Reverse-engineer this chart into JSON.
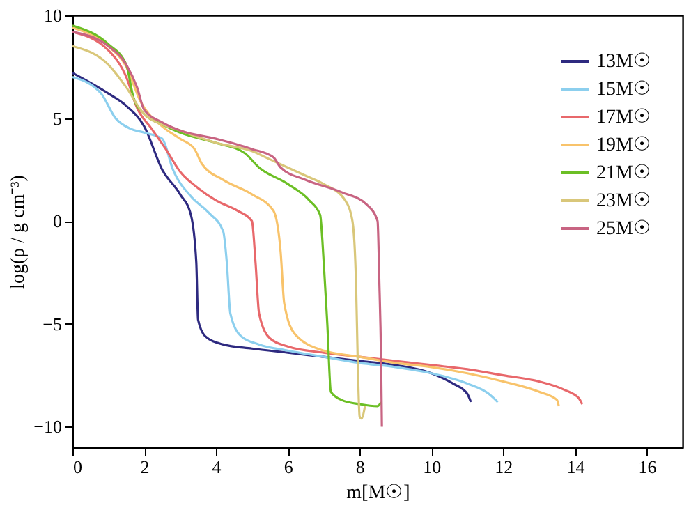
{
  "chart_data": {
    "type": "line",
    "xlabel": "m[M☉]",
    "ylabel": "log(ρ / g cm⁻³)",
    "xlim": [
      0,
      17
    ],
    "ylim": [
      -11,
      10
    ],
    "xticks": [
      0,
      2,
      4,
      6,
      8,
      10,
      12,
      14,
      16
    ],
    "yticks": [
      -10,
      -5,
      0,
      5,
      10
    ],
    "grid": false,
    "legend": "top right",
    "line_style": "solid",
    "marker": "none",
    "series": [
      {
        "name": "13M☉",
        "color": "#2e2a80",
        "x": [
          0,
          1,
          1.5,
          2,
          2.5,
          3,
          3.3,
          3.45,
          3.5,
          3.7,
          4.2,
          5,
          6,
          7,
          8,
          9,
          10,
          10.6,
          11,
          11.1
        ],
        "values": [
          7.2,
          6.2,
          5.6,
          4.6,
          2.5,
          1.3,
          0.3,
          -2,
          -4.8,
          -5.6,
          -6.0,
          -6.2,
          -6.4,
          -6.6,
          -6.8,
          -7.0,
          -7.4,
          -7.9,
          -8.4,
          -8.8
        ]
      },
      {
        "name": "15M☉",
        "color": "#8ccfee",
        "x": [
          0,
          0.8,
          1.2,
          1.6,
          2,
          2.5,
          2.8,
          3.3,
          3.8,
          4.2,
          4.3,
          4.4,
          4.7,
          5.2,
          6,
          7,
          8,
          9,
          10,
          11,
          11.6,
          11.85
        ],
        "values": [
          7.0,
          6.2,
          5.0,
          4.5,
          4.3,
          4.0,
          2.5,
          1.2,
          0.4,
          -0.5,
          -2,
          -4.5,
          -5.6,
          -6.0,
          -6.3,
          -6.6,
          -6.9,
          -7.1,
          -7.4,
          -7.9,
          -8.4,
          -8.8
        ]
      },
      {
        "name": "17M☉",
        "color": "#e8686b",
        "x": [
          0,
          1,
          1.5,
          1.8,
          2.2,
          2.6,
          3,
          3.5,
          4,
          4.6,
          5,
          5.1,
          5.2,
          5.5,
          6,
          7,
          8,
          9,
          10,
          11,
          12,
          13,
          13.7,
          14.1,
          14.2
        ],
        "values": [
          9.2,
          8.3,
          7.0,
          5.5,
          4.5,
          3.5,
          2.4,
          1.6,
          1.0,
          0.5,
          0,
          -2,
          -4.5,
          -5.7,
          -6.1,
          -6.4,
          -6.6,
          -6.8,
          -7.0,
          -7.2,
          -7.5,
          -7.8,
          -8.2,
          -8.6,
          -8.9
        ]
      },
      {
        "name": "19M☉",
        "color": "#f8c36b",
        "x": [
          0,
          1,
          1.5,
          1.9,
          2.5,
          3,
          3.4,
          3.6,
          4.2,
          5,
          5.6,
          5.8,
          5.9,
          6.2,
          7,
          8,
          9,
          10,
          11,
          12,
          13,
          13.5,
          13.55
        ],
        "values": [
          9.4,
          8.5,
          7.5,
          5.8,
          4.6,
          4.0,
          3.5,
          2.8,
          2.0,
          1.3,
          0.5,
          -1.5,
          -4,
          -5.5,
          -6.3,
          -6.6,
          -6.9,
          -7.1,
          -7.4,
          -7.8,
          -8.3,
          -8.7,
          -9.0
        ]
      },
      {
        "name": "21M☉",
        "color": "#6cbf25",
        "x": [
          0,
          1,
          1.5,
          1.7,
          2,
          2.5,
          3,
          4,
          4.8,
          5.2,
          6,
          6.6,
          6.9,
          7.0,
          7.1,
          7.2,
          7.5,
          8,
          8.5,
          8.6
        ],
        "values": [
          9.5,
          8.6,
          7.6,
          6.0,
          5.2,
          4.7,
          4.3,
          3.8,
          3.3,
          2.6,
          1.8,
          1.0,
          0.3,
          -2,
          -5,
          -8.3,
          -8.7,
          -8.9,
          -9.0,
          -8.8
        ]
      },
      {
        "name": "23M☉",
        "color": "#d9c77a",
        "x": [
          0,
          1,
          1.5,
          2,
          3,
          4,
          5,
          5.5,
          6,
          6.5,
          7,
          7.6,
          7.8,
          7.9,
          7.95,
          8.0,
          8.05,
          8.15
        ],
        "values": [
          8.5,
          7.6,
          6.5,
          5.2,
          4.4,
          3.8,
          3.4,
          3.0,
          2.6,
          2.2,
          1.8,
          1.0,
          0,
          -3,
          -7,
          -9.5,
          -9.6,
          -9.0
        ]
      },
      {
        "name": "25M☉",
        "color": "#c86482",
        "x": [
          0,
          1,
          1.5,
          1.8,
          2,
          2.5,
          3,
          4,
          5,
          5.6,
          5.8,
          6.5,
          7.5,
          8.2,
          8.5,
          8.55,
          8.6,
          8.62
        ],
        "values": [
          9.2,
          8.5,
          7.6,
          6.5,
          5.4,
          4.8,
          4.4,
          4.0,
          3.5,
          3.1,
          2.6,
          2.0,
          1.4,
          0.8,
          0,
          -3,
          -7,
          -10
        ]
      }
    ]
  }
}
